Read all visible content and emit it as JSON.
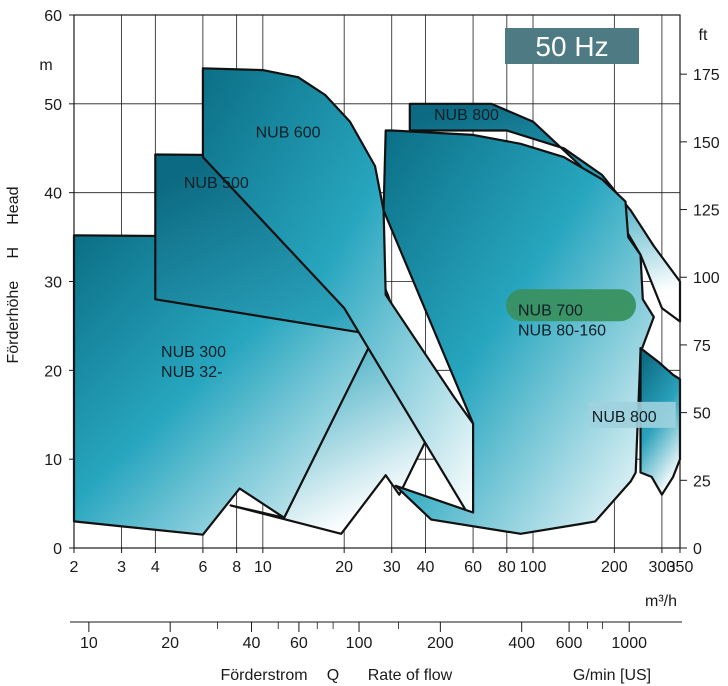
{
  "chart_data": {
    "type": "area",
    "title": "",
    "badge": "50 Hz",
    "x_scale": "log",
    "x_unit": "m³/h",
    "xlim": [
      2,
      350
    ],
    "x_ticks": [
      "2",
      "3",
      "4",
      "6",
      "8",
      "10",
      "20",
      "30",
      "40",
      "60",
      "80",
      "100",
      "200",
      "300",
      "350"
    ],
    "x_tick_values": [
      2,
      3,
      4,
      6,
      8,
      10,
      20,
      30,
      40,
      60,
      80,
      100,
      200,
      300,
      350
    ],
    "y_left_unit": "m",
    "ylim": [
      0,
      60
    ],
    "y_left_ticks": [
      "0",
      "10",
      "20",
      "30",
      "40",
      "50",
      "60"
    ],
    "y_left_tick_values": [
      0,
      10,
      20,
      30,
      40,
      50,
      60
    ],
    "y_left_label": "Förderhöhe     H     Head",
    "y_right_unit": "ft",
    "y_right_ticks": [
      "0",
      "25",
      "50",
      "75",
      "100",
      "125",
      "150",
      "175"
    ],
    "y_right_tick_values_ft": [
      0,
      25,
      50,
      75,
      100,
      125,
      150,
      175
    ],
    "x2_ticks": [
      "10",
      "20",
      "40",
      "60",
      "100",
      "200",
      "400",
      "600",
      "1000"
    ],
    "x2_tick_values_m3h": [
      2.27,
      4.54,
      9.08,
      13.6,
      22.7,
      45.4,
      90.8,
      136,
      227
    ],
    "x2_label_de": "Förderstrom",
    "x2_label_q": "Q",
    "x2_label_en": "Rate of flow",
    "x2_unit": "G/min [US]",
    "grid": true,
    "regions": [
      {
        "name": "NUB 300 NUB 32-",
        "label_lines": [
          "NUB 300",
          "NUB 32-"
        ],
        "label_at": [
          4.2,
          21.5
        ],
        "points": [
          [
            2,
            35.2
          ],
          [
            14,
            35
          ],
          [
            18,
            33.5
          ],
          [
            21,
            30
          ],
          [
            24,
            27
          ],
          [
            27,
            24
          ],
          [
            12,
            3.4
          ],
          [
            8.2,
            6.7
          ],
          [
            6,
            1.5
          ],
          [
            2,
            3
          ]
        ]
      },
      {
        "name": "NUB 500",
        "label_lines": [
          "NUB 500"
        ],
        "label_at": [
          5.1,
          40.5
        ],
        "points": [
          [
            4,
            44.3
          ],
          [
            10,
            44.2
          ],
          [
            13,
            43.5
          ],
          [
            17,
            41
          ],
          [
            20,
            38
          ],
          [
            25,
            33
          ],
          [
            29,
            28.5
          ],
          [
            31,
            26
          ],
          [
            51,
            16.8
          ],
          [
            46,
            10.5
          ],
          [
            40,
            12
          ],
          [
            32,
            6
          ],
          [
            28.5,
            8.2
          ],
          [
            19.5,
            1.6
          ],
          [
            7.6,
            4.8
          ],
          [
            12,
            3.4
          ],
          [
            26,
            24
          ],
          [
            4,
            28
          ]
        ]
      },
      {
        "name": "NUB 600",
        "label_lines": [
          "NUB 600"
        ],
        "label_at": [
          9.4,
          46.2
        ],
        "points": [
          [
            6,
            54
          ],
          [
            10,
            53.8
          ],
          [
            13.5,
            53
          ],
          [
            17,
            51
          ],
          [
            21,
            48
          ],
          [
            26,
            43
          ],
          [
            28,
            38
          ],
          [
            28.5,
            28.5
          ],
          [
            51,
            17
          ],
          [
            60,
            14
          ],
          [
            62,
            10
          ],
          [
            60,
            4
          ],
          [
            57,
            4
          ],
          [
            20,
            27
          ],
          [
            6,
            44
          ]
        ]
      },
      {
        "name": "NUB 800 top",
        "label_lines": [
          "NUB 800"
        ],
        "label_at": [
          43,
          48.2
        ],
        "points": [
          [
            35,
            50
          ],
          [
            70,
            50
          ],
          [
            100,
            48
          ],
          [
            150,
            43
          ],
          [
            200,
            38
          ],
          [
            250,
            33
          ],
          [
            300,
            27
          ],
          [
            350,
            25.5
          ],
          [
            350,
            30
          ],
          [
            280,
            34
          ],
          [
            230,
            38
          ],
          [
            180,
            42
          ],
          [
            130,
            45
          ],
          [
            80,
            47
          ],
          [
            35,
            47
          ]
        ]
      },
      {
        "name": "NUB 700 NUB 80-160",
        "label_lines": [
          "NUB 700",
          "NUB 80-160"
        ],
        "label_at": [
          88,
          26.2
        ],
        "points": [
          [
            30,
            47
          ],
          [
            60,
            46.5
          ],
          [
            90,
            45.5
          ],
          [
            130,
            44
          ],
          [
            180,
            41.5
          ],
          [
            220,
            39
          ],
          [
            225,
            35
          ],
          [
            250,
            33
          ],
          [
            255,
            28
          ],
          [
            280,
            26
          ],
          [
            250,
            22
          ],
          [
            240,
            8.5
          ],
          [
            230,
            7.5
          ],
          [
            170,
            3
          ],
          [
            150,
            2.7
          ],
          [
            90,
            1.6
          ],
          [
            42,
            3.2
          ],
          [
            31,
            7
          ],
          [
            60,
            4
          ],
          [
            60,
            14
          ],
          [
            28,
            38
          ],
          [
            28.5,
            47
          ]
        ]
      },
      {
        "name": "NUB 800 bottom",
        "label_lines": [
          "NUB 800"
        ],
        "label_at": [
          165,
          14.2
        ],
        "points": [
          [
            250,
            22.5
          ],
          [
            290,
            21
          ],
          [
            330,
            19.5
          ],
          [
            350,
            19
          ],
          [
            350,
            10
          ],
          [
            330,
            8
          ],
          [
            300,
            6
          ],
          [
            275,
            8
          ],
          [
            250,
            8.5
          ]
        ]
      }
    ],
    "badge_color": "#4d7a83",
    "fill_dark": "#1e92a8",
    "fill_light": "#ffffff"
  }
}
